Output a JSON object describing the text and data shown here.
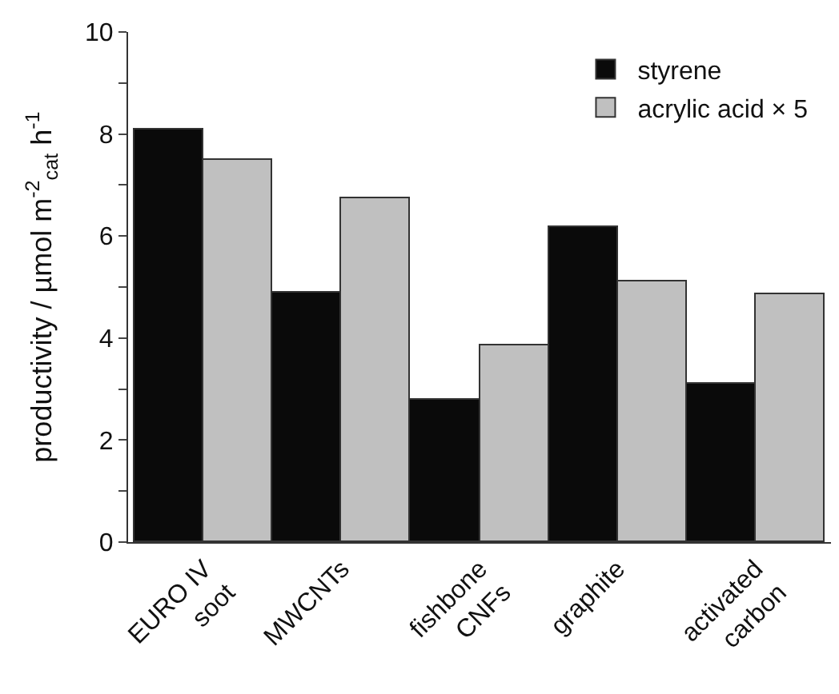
{
  "chart_data": {
    "type": "bar",
    "ylabel": "productivity / µmol m$^{-2}$$_{cat}$ h$^{-1}$",
    "categories": [
      "EURO IV\nsoot",
      "MWCNTs",
      "fishbone\nCNFs",
      "graphite",
      "activated\ncarbon"
    ],
    "series": [
      {
        "name": "styrene",
        "color": "#0a0a0a",
        "values": [
          8.1,
          4.9,
          2.8,
          6.17,
          3.1
        ]
      },
      {
        "name": "acrylic acid × 5",
        "color": "#c0c0c0",
        "values": [
          7.5,
          6.75,
          3.87,
          5.1,
          4.87
        ]
      }
    ],
    "ylim": [
      0,
      10
    ],
    "yticks": [
      0,
      {
        "value": 1,
        "label": null
      },
      2,
      {
        "value": 3,
        "label": null
      },
      4,
      {
        "value": 5,
        "label": null
      },
      6,
      {
        "value": 7,
        "label": null
      },
      8,
      {
        "value": 9,
        "label": null
      },
      10
    ],
    "legend": "top right"
  }
}
